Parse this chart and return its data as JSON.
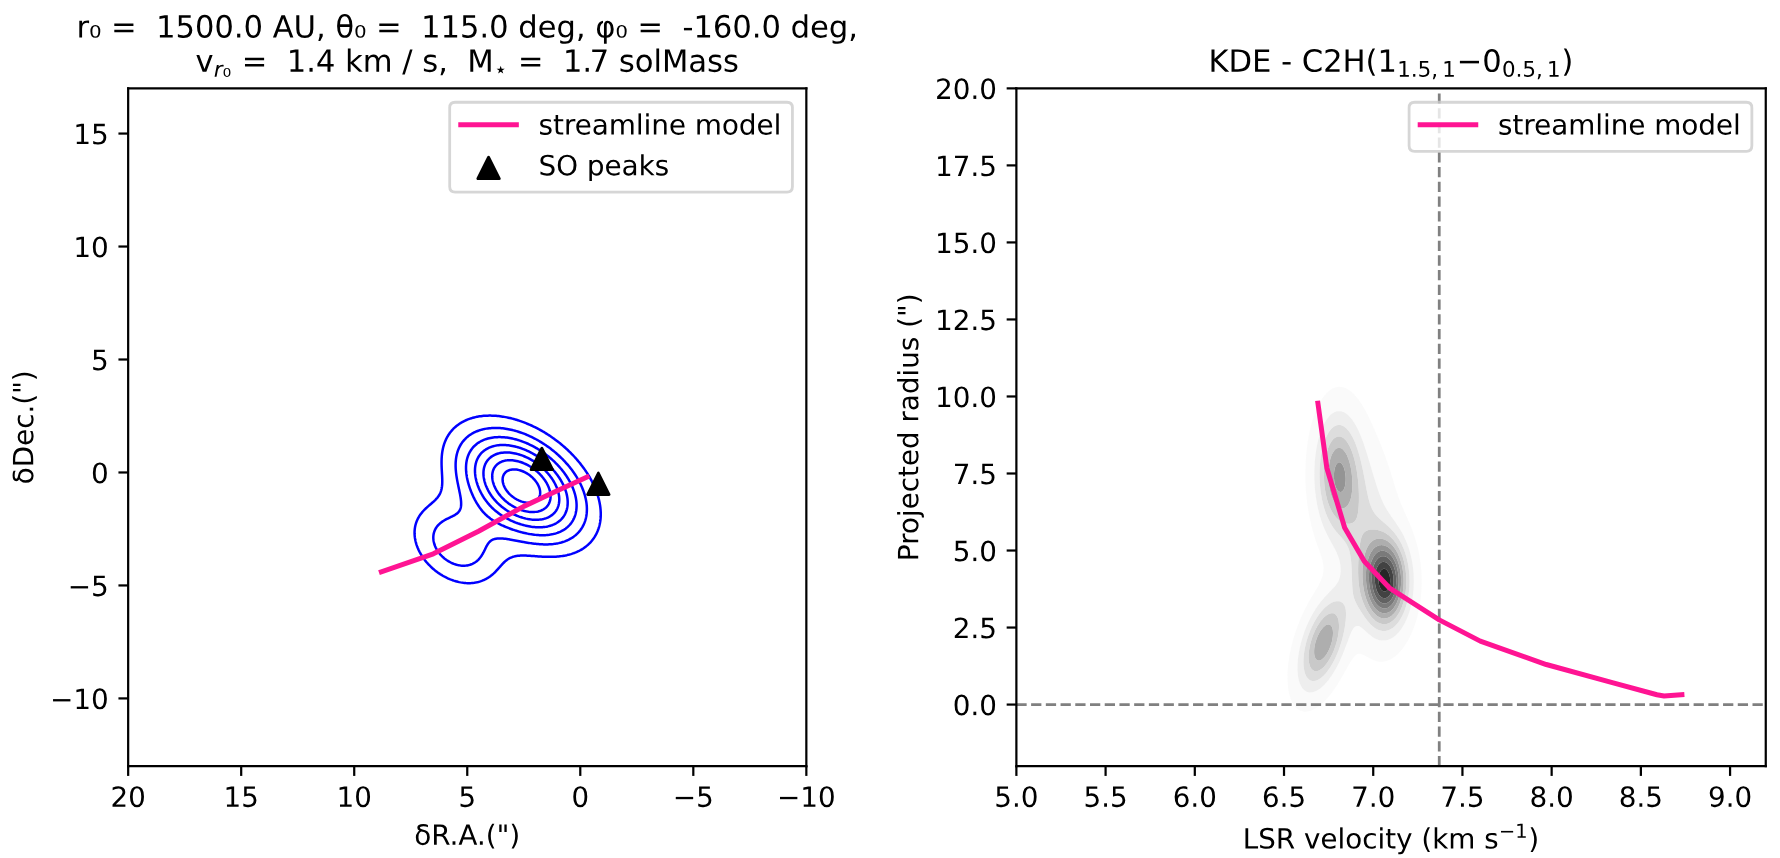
{
  "chart_data": [
    {
      "type": "line",
      "title": "r₀ =  1500.0 AU, θ₀ =  115.0 deg, φ₀ =  -160.0 deg,\nv$_{r₀}$ =  1.4 km / s,  M$_{⋆}$ =  1.7 solMass",
      "xlabel": "δR.A.(\")",
      "ylabel": "δDec.(\")",
      "xlim": [
        20,
        -10
      ],
      "ylim": [
        -13,
        17
      ],
      "xticks": [
        20,
        15,
        10,
        5,
        0,
        {
          "value": -5,
          "label": "−5"
        },
        {
          "value": -10,
          "label": "−10"
        }
      ],
      "yticks": [
        {
          "value": -10,
          "label": "−10"
        },
        {
          "value": -5,
          "label": "−5"
        },
        0,
        5,
        10,
        15
      ],
      "grid": false,
      "legend": "top right",
      "series": [
        {
          "name": "streamline model",
          "color": "#ff1493",
          "marker": "none",
          "line_style": "solid",
          "x": [
            8.8,
            6.5,
            4.5,
            2.5,
            1.0,
            -0.3
          ],
          "values": [
            -4.4,
            -3.6,
            -2.6,
            -1.5,
            -0.8,
            -0.2
          ]
        },
        {
          "name": "SO peaks",
          "type": "scatter",
          "color": "#000000",
          "marker": "triangle",
          "x": [
            1.7,
            -0.8
          ],
          "values": [
            0.6,
            -0.5
          ]
        }
      ]
    },
    {
      "type": "line",
      "title": "KDE - C2H(1$_{1.5,1}$−0$_{0.5,1}$)",
      "xlabel": "LSR velocity (km s$^{−1}$)",
      "ylabel": "Projected radius (\")",
      "xlim": [
        5.0,
        9.2
      ],
      "ylim": [
        -2,
        20
      ],
      "xticks": [
        {
          "value": 5,
          "label": "5.0"
        },
        5.5,
        {
          "value": 6,
          "label": "6.0"
        },
        6.5,
        {
          "value": 7,
          "label": "7.0"
        },
        7.5,
        {
          "value": 8,
          "label": "8.0"
        },
        8.5,
        {
          "value": 9,
          "label": "9.0"
        }
      ],
      "yticks": [
        {
          "value": 0,
          "label": "0.0"
        },
        2.5,
        {
          "value": 5,
          "label": "5.0"
        },
        7.5,
        {
          "value": 10,
          "label": "10.0"
        },
        12.5,
        {
          "value": 15,
          "label": "15.0"
        },
        17.5,
        {
          "value": 20,
          "label": "20.0"
        }
      ],
      "grid": false,
      "legend": "top right",
      "ref_lines": [
        {
          "axis": "x",
          "value": 7.37,
          "color": "#808080",
          "line_style": "dashed"
        },
        {
          "axis": "y",
          "value": 0,
          "color": "#808080",
          "line_style": "dashed"
        }
      ],
      "series": [
        {
          "name": "streamline model",
          "color": "#ff1493",
          "marker": "none",
          "line_style": "solid",
          "x": [
            6.69,
            6.74,
            6.84,
            6.95,
            7.09,
            7.37,
            7.6,
            7.97,
            8.34,
            8.59,
            8.63,
            8.73
          ],
          "values": [
            9.78,
            7.68,
            5.74,
            4.65,
            3.79,
            2.75,
            2.06,
            1.3,
            0.71,
            0.32,
            0.28,
            0.32
          ]
        }
      ]
    }
  ]
}
